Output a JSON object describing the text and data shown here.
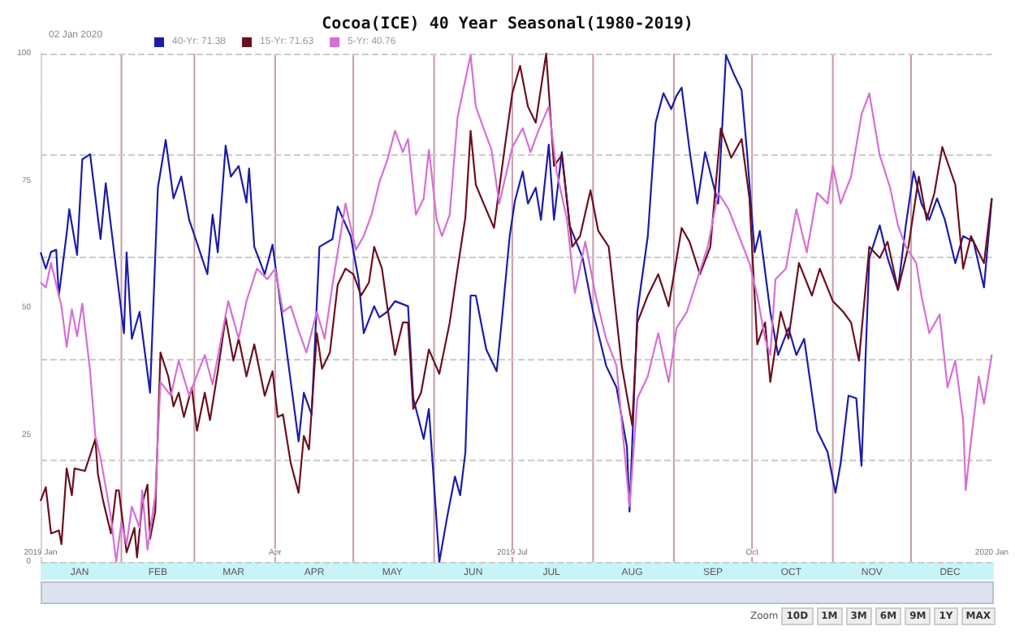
{
  "chart_data": {
    "type": "line",
    "title": "Cocoa(ICE) 40 Year Seasonal(1980-2019)",
    "legend_title": "02 Jan 2020",
    "legend": "top left",
    "grid": true,
    "marker": "none",
    "line_style": "solid",
    "xlim": [
      "2019-01-01",
      "2020-01-01"
    ],
    "ylim": [
      0,
      100
    ],
    "yticks": [
      0,
      25,
      50,
      75,
      100
    ],
    "xticks": [
      {
        "value": "2019-01-16",
        "label": "JAN"
      },
      {
        "value": "2019-02-01",
        "label": null
      },
      {
        "value": "2019-02-15",
        "label": "FEB"
      },
      {
        "value": "2019-03-01",
        "label": null
      },
      {
        "value": "2019-03-16",
        "label": "MAR"
      },
      {
        "value": "2019-04-01",
        "label": null
      },
      {
        "value": "2019-04-16",
        "label": "APR"
      },
      {
        "value": "2019-05-01",
        "label": null
      },
      {
        "value": "2019-05-16",
        "label": "MAY"
      },
      {
        "value": "2019-06-01",
        "label": null
      },
      {
        "value": "2019-06-16",
        "label": "JUN"
      },
      {
        "value": "2019-07-01",
        "label": null
      },
      {
        "value": "2019-07-16",
        "label": "JUL"
      },
      {
        "value": "2019-08-01",
        "label": null
      },
      {
        "value": "2019-08-16",
        "label": "AUG"
      },
      {
        "value": "2019-09-01",
        "label": null
      },
      {
        "value": "2019-09-16",
        "label": "SEP"
      },
      {
        "value": "2019-10-01",
        "label": null
      },
      {
        "value": "2019-10-16",
        "label": "OCT"
      },
      {
        "value": "2019-11-01",
        "label": null
      },
      {
        "value": "2019-11-16",
        "label": "NOV"
      },
      {
        "value": "2019-12-01",
        "label": null
      },
      {
        "value": "2019-12-16",
        "label": "DEC"
      }
    ],
    "x2lim": [
      "2019-01-01",
      "2020-01-01"
    ],
    "x2ticks": [
      {
        "value": "2019-01-01",
        "label": "2019 Jan"
      },
      {
        "value": "2019-04-01",
        "label": "Apr"
      },
      {
        "value": "2019-07-01",
        "label": "2019 Jul"
      },
      {
        "value": "2019-10-01",
        "label": "Oct"
      },
      {
        "value": "2020-01-01",
        "label": "2020 Jan"
      }
    ],
    "annotations": [
      "Zoom",
      "10D",
      "1M",
      "3M",
      "6M",
      "9M",
      "1Y",
      "MAX"
    ],
    "series": [
      {
        "name": "40-Yr: 71.38",
        "color": "#1c1ca8",
        "x": [
          "2019-01-01",
          "2019-01-03",
          "2019-01-05",
          "2019-01-07",
          "2019-01-08",
          "2019-01-11",
          "2019-01-12",
          "2019-01-15",
          "2019-01-17",
          "2019-01-20",
          "2019-01-24",
          "2019-01-26",
          "2019-02-02",
          "2019-02-03",
          "2019-02-05",
          "2019-02-08",
          "2019-02-12",
          "2019-02-15",
          "2019-02-18",
          "2019-02-21",
          "2019-02-24",
          "2019-02-27",
          "2019-03-01",
          "2019-03-06",
          "2019-03-08",
          "2019-03-10",
          "2019-03-13",
          "2019-03-15",
          "2019-03-18",
          "2019-03-21",
          "2019-03-22",
          "2019-03-24",
          "2019-03-28",
          "2019-03-31",
          "2019-04-04",
          "2019-04-10",
          "2019-04-12",
          "2019-04-15",
          "2019-04-18",
          "2019-04-23",
          "2019-04-25",
          "2019-04-30",
          "2019-05-03",
          "2019-05-05",
          "2019-05-09",
          "2019-05-11",
          "2019-05-14",
          "2019-05-17",
          "2019-05-22",
          "2019-05-24",
          "2019-05-28",
          "2019-05-30",
          "2019-06-03",
          "2019-06-06",
          "2019-06-09",
          "2019-06-11",
          "2019-06-13",
          "2019-06-15",
          "2019-06-17",
          "2019-06-21",
          "2019-06-25",
          "2019-06-27",
          "2019-06-30",
          "2019-07-02",
          "2019-07-05",
          "2019-07-07",
          "2019-07-10",
          "2019-07-12",
          "2019-07-15",
          "2019-07-17",
          "2019-07-20",
          "2019-07-23",
          "2019-07-28",
          "2019-08-01",
          "2019-08-06",
          "2019-08-10",
          "2019-08-14",
          "2019-08-15",
          "2019-08-18",
          "2019-08-22",
          "2019-08-25",
          "2019-08-28",
          "2019-08-31",
          "2019-09-02",
          "2019-09-04",
          "2019-09-07",
          "2019-09-10",
          "2019-09-13",
          "2019-09-18",
          "2019-09-21",
          "2019-09-24",
          "2019-09-27",
          "2019-09-29",
          "2019-10-02",
          "2019-10-04",
          "2019-10-08",
          "2019-10-11",
          "2019-10-15",
          "2019-10-18",
          "2019-10-21",
          "2019-10-26",
          "2019-10-30",
          "2019-11-02",
          "2019-11-04",
          "2019-11-07",
          "2019-11-10",
          "2019-11-12",
          "2019-11-15",
          "2019-11-19",
          "2019-11-22",
          "2019-11-26",
          "2019-11-29",
          "2019-12-02",
          "2019-12-05",
          "2019-12-08",
          "2019-12-11",
          "2019-12-14",
          "2019-12-18",
          "2019-12-21",
          "2019-12-25",
          "2019-12-29",
          "2020-01-01"
        ],
        "values": [
          60.9,
          57.7,
          61,
          61.4,
          52.4,
          64.6,
          69.4,
          60.4,
          79.2,
          80.2,
          63.5,
          74.5,
          45,
          60.9,
          43.9,
          49.2,
          33.3,
          73.6,
          83,
          71.5,
          75.8,
          67.3,
          64.3,
          56.6,
          68.3,
          60.9,
          81.9,
          75.8,
          77.9,
          70.7,
          77.4,
          62,
          56.6,
          62.4,
          47.1,
          23.7,
          33.3,
          29,
          62,
          63.5,
          69.9,
          64.1,
          55.6,
          45,
          50.3,
          48.1,
          49.2,
          51.3,
          50.3,
          32.2,
          24.2,
          30.1,
          0,
          8.8,
          16.8,
          13.1,
          21.6,
          52.4,
          52.4,
          41.8,
          37.5,
          47.6,
          64.1,
          71,
          76.8,
          70.5,
          73.6,
          67.3,
          82.1,
          67.3,
          80.6,
          66.2,
          59.8,
          49.2,
          38.6,
          34.3,
          22.6,
          9.9,
          49.2,
          64.1,
          86.4,
          92.2,
          89.1,
          91.7,
          93.3,
          81.1,
          70.5,
          80.6,
          70.5,
          99.7,
          96,
          92.8,
          81.1,
          60.9,
          65.1,
          49.2,
          40.7,
          46,
          40.7,
          43.9,
          25.8,
          21.6,
          13.6,
          19.4,
          32.7,
          32.2,
          18.9,
          59.8,
          66.2,
          59.8,
          53.5,
          66.2,
          76.8,
          70.5,
          67.3,
          71.5,
          67.3,
          58.8,
          64.1,
          63,
          54,
          71.4
        ]
      },
      {
        "name": "15-Yr: 71.63",
        "color": "#6b0f1f",
        "x": [
          "2019-01-01",
          "2019-01-03",
          "2019-01-05",
          "2019-01-08",
          "2019-01-09",
          "2019-01-11",
          "2019-01-13",
          "2019-01-14",
          "2019-01-18",
          "2019-01-20",
          "2019-01-22",
          "2019-01-23",
          "2019-01-25",
          "2019-01-28",
          "2019-01-30",
          "2019-01-31",
          "2019-02-03",
          "2019-02-06",
          "2019-02-07",
          "2019-02-09",
          "2019-02-11",
          "2019-02-12",
          "2019-02-14",
          "2019-02-16",
          "2019-02-19",
          "2019-02-21",
          "2019-02-23",
          "2019-02-25",
          "2019-02-28",
          "2019-03-02",
          "2019-03-05",
          "2019-03-07",
          "2019-03-10",
          "2019-03-13",
          "2019-03-16",
          "2019-03-18",
          "2019-03-21",
          "2019-03-24",
          "2019-03-28",
          "2019-03-31",
          "2019-04-02",
          "2019-04-04",
          "2019-04-07",
          "2019-04-10",
          "2019-04-12",
          "2019-04-14",
          "2019-04-17",
          "2019-04-19",
          "2019-04-22",
          "2019-04-25",
          "2019-04-28",
          "2019-05-01",
          "2019-05-04",
          "2019-05-07",
          "2019-05-09",
          "2019-05-12",
          "2019-05-14",
          "2019-05-17",
          "2019-05-20",
          "2019-05-22",
          "2019-05-24",
          "2019-05-27",
          "2019-05-30",
          "2019-06-03",
          "2019-06-07",
          "2019-06-10",
          "2019-06-13",
          "2019-06-15",
          "2019-06-17",
          "2019-06-20",
          "2019-06-24",
          "2019-06-28",
          "2019-07-01",
          "2019-07-04",
          "2019-07-07",
          "2019-07-10",
          "2019-07-14",
          "2019-07-17",
          "2019-07-20",
          "2019-07-24",
          "2019-07-27",
          "2019-07-31",
          "2019-08-03",
          "2019-08-07",
          "2019-08-12",
          "2019-08-16",
          "2019-08-18",
          "2019-08-22",
          "2019-08-26",
          "2019-08-30",
          "2019-09-04",
          "2019-09-07",
          "2019-09-11",
          "2019-09-15",
          "2019-09-19",
          "2019-09-23",
          "2019-09-27",
          "2019-09-30",
          "2019-10-03",
          "2019-10-06",
          "2019-10-08",
          "2019-10-12",
          "2019-10-15",
          "2019-10-19",
          "2019-10-24",
          "2019-10-27",
          "2019-11-01",
          "2019-11-05",
          "2019-11-08",
          "2019-11-11",
          "2019-11-15",
          "2019-11-19",
          "2019-11-22",
          "2019-11-26",
          "2019-11-30",
          "2019-12-04",
          "2019-12-07",
          "2019-12-10",
          "2019-12-13",
          "2019-12-18",
          "2019-12-21",
          "2019-12-24",
          "2019-12-29",
          "2020-01-01"
        ],
        "values": [
          12,
          14.7,
          5.6,
          6.2,
          3.5,
          18.4,
          13.1,
          18.4,
          17.9,
          21,
          24.2,
          17.3,
          12,
          5.6,
          14.1,
          14.1,
          1.9,
          6.7,
          0.9,
          11.5,
          15.2,
          4.6,
          9.9,
          41.2,
          36.5,
          30.6,
          33.3,
          28.5,
          34.3,
          25.8,
          33.3,
          27.9,
          37.5,
          48.1,
          39.6,
          43.9,
          36.5,
          42.8,
          32.7,
          37.5,
          28.5,
          29,
          19.4,
          13.6,
          24.8,
          22.1,
          45,
          38,
          41.2,
          54.5,
          57.7,
          56.6,
          52.4,
          55,
          62,
          57.7,
          50.3,
          40.7,
          47.1,
          47.1,
          30.1,
          33.3,
          41.8,
          37,
          47.1,
          57.7,
          67.8,
          84.8,
          74.2,
          70.5,
          65.7,
          81.1,
          92.2,
          97.6,
          89.6,
          86.4,
          100,
          77.9,
          80,
          62,
          64.1,
          73.1,
          65.1,
          62,
          38.6,
          26.9,
          47.1,
          52.4,
          56.6,
          50.3,
          65.7,
          63,
          56.6,
          62,
          85.3,
          79.5,
          83.2,
          71.5,
          42.8,
          47.1,
          35.4,
          49.2,
          43.9,
          58.8,
          52.4,
          57.7,
          51.3,
          49.2,
          47.1,
          39.6,
          62,
          59.8,
          63,
          53.5,
          62,
          75.8,
          67.3,
          72.6,
          81.6,
          74.2,
          57.7,
          64.1,
          58.8,
          71.6
        ]
      },
      {
        "name": "5-Yr: 40.76",
        "color": "#d66fd6",
        "x": [
          "2019-01-01",
          "2019-01-03",
          "2019-01-05",
          "2019-01-09",
          "2019-01-11",
          "2019-01-13",
          "2019-01-15",
          "2019-01-17",
          "2019-01-20",
          "2019-01-22",
          "2019-01-24",
          "2019-01-28",
          "2019-01-30",
          "2019-02-01",
          "2019-02-03",
          "2019-02-05",
          "2019-02-08",
          "2019-02-09",
          "2019-02-11",
          "2019-02-14",
          "2019-02-16",
          "2019-02-20",
          "2019-02-23",
          "2019-02-27",
          "2019-03-01",
          "2019-03-05",
          "2019-03-08",
          "2019-03-14",
          "2019-03-18",
          "2019-03-21",
          "2019-03-25",
          "2019-03-29",
          "2019-04-01",
          "2019-04-04",
          "2019-04-07",
          "2019-04-10",
          "2019-04-13",
          "2019-04-17",
          "2019-04-20",
          "2019-04-23",
          "2019-04-28",
          "2019-05-02",
          "2019-05-05",
          "2019-05-08",
          "2019-05-11",
          "2019-05-14",
          "2019-05-17",
          "2019-05-20",
          "2019-05-22",
          "2019-05-25",
          "2019-05-28",
          "2019-05-30",
          "2019-06-02",
          "2019-06-04",
          "2019-06-07",
          "2019-06-10",
          "2019-06-13",
          "2019-06-15",
          "2019-06-17",
          "2019-06-20",
          "2019-06-23",
          "2019-06-26",
          "2019-07-01",
          "2019-07-05",
          "2019-07-08",
          "2019-07-11",
          "2019-07-15",
          "2019-07-18",
          "2019-07-22",
          "2019-07-25",
          "2019-07-29",
          "2019-08-02",
          "2019-08-06",
          "2019-08-10",
          "2019-08-15",
          "2019-08-18",
          "2019-08-22",
          "2019-08-26",
          "2019-08-30",
          "2019-09-02",
          "2019-09-06",
          "2019-09-10",
          "2019-09-14",
          "2019-09-18",
          "2019-09-22",
          "2019-09-26",
          "2019-09-30",
          "2019-10-03",
          "2019-10-06",
          "2019-10-08",
          "2019-10-10",
          "2019-10-14",
          "2019-10-18",
          "2019-10-22",
          "2019-10-26",
          "2019-10-30",
          "2019-11-01",
          "2019-11-04",
          "2019-11-08",
          "2019-11-12",
          "2019-11-15",
          "2019-11-19",
          "2019-11-23",
          "2019-11-26",
          "2019-11-29",
          "2019-12-03",
          "2019-12-05",
          "2019-12-08",
          "2019-12-12",
          "2019-12-15",
          "2019-12-18",
          "2019-12-21",
          "2019-12-22",
          "2019-12-24",
          "2019-12-27",
          "2019-12-29",
          "2020-01-01"
        ],
        "values": [
          55,
          54,
          58.8,
          50.3,
          42.3,
          49.7,
          44.4,
          50.8,
          37.5,
          24.8,
          20.5,
          8.8,
          0,
          7.8,
          3.5,
          10.9,
          6.7,
          14.1,
          2.4,
          13.1,
          35.4,
          32.7,
          39.6,
          32.7,
          35.4,
          40.7,
          34.9,
          51.3,
          43.9,
          51.3,
          57.7,
          55.6,
          57.7,
          49.2,
          50.3,
          45.5,
          41.2,
          49.2,
          43.9,
          54.5,
          70.5,
          61.4,
          64.1,
          68.3,
          74.7,
          79,
          84.8,
          80.6,
          83.2,
          68.3,
          71.5,
          81.1,
          67.3,
          64.1,
          68.3,
          87.5,
          94.9,
          99.7,
          89.6,
          85.3,
          81.1,
          70.5,
          81.6,
          85.3,
          80.6,
          84.8,
          89.6,
          76.8,
          67.3,
          52.9,
          63,
          52.4,
          43.9,
          38.6,
          10.9,
          32.2,
          36.5,
          45,
          35.4,
          46,
          49.2,
          55.6,
          62,
          72.6,
          69.4,
          64.1,
          58.8,
          52.4,
          43.9,
          40.7,
          55.6,
          57.7,
          69.4,
          60.9,
          72.6,
          70.5,
          77.9,
          70.5,
          75.8,
          88,
          92.2,
          80,
          73.6,
          66.2,
          62,
          58.8,
          52.4,
          45,
          48.7,
          34.3,
          39.6,
          27.9,
          14.1,
          23.7,
          36.5,
          31.1,
          40.8
        ]
      }
    ]
  }
}
